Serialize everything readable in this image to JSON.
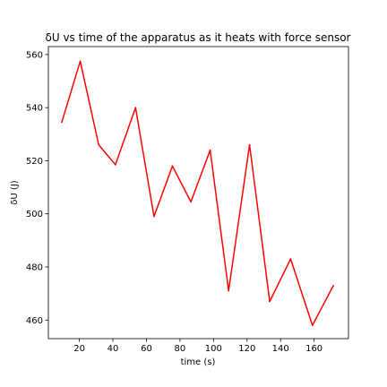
{
  "chart_data": {
    "type": "line",
    "title": "δU vs time of the apparatus as it heats with force sensor",
    "xlabel": "time (s)",
    "ylabel": "δU (J)",
    "xlim": [
      1.5,
      180.5
    ],
    "ylim": [
      453,
      563
    ],
    "xticks": [
      20,
      40,
      60,
      80,
      100,
      120,
      140,
      160
    ],
    "yticks": [
      460,
      480,
      500,
      520,
      540,
      560
    ],
    "grid": false,
    "series": [
      {
        "color": "#ff0000",
        "x": [
          9.5,
          20.5,
          31.5,
          41.5,
          53.5,
          64.5,
          75.5,
          86.5,
          98,
          109,
          121.5,
          133.5,
          146,
          159,
          171.5
        ],
        "y": [
          534.5,
          557.5,
          526,
          518.5,
          540,
          499,
          518,
          504.5,
          524,
          471,
          526,
          467,
          483,
          458,
          473
        ]
      }
    ]
  }
}
